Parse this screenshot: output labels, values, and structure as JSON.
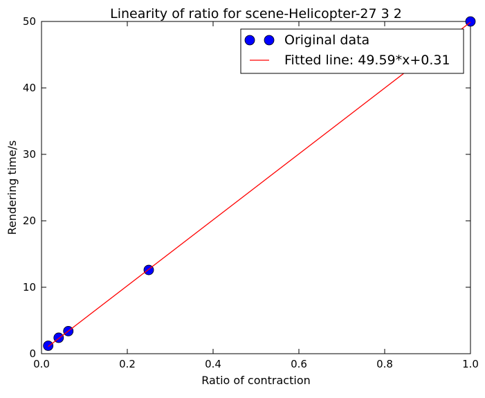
{
  "chart_data": {
    "type": "scatter",
    "title": "Linearity of ratio for scene-Helicopter-27 3 2",
    "xlabel": "Ratio of contraction",
    "ylabel": "Rendering time/s",
    "xlim": [
      0.0,
      1.0
    ],
    "ylim": [
      0,
      50
    ],
    "xticks": [
      0.0,
      0.2,
      0.4,
      0.6,
      0.8,
      1.0
    ],
    "xtick_labels": [
      "0.0",
      "0.2",
      "0.4",
      "0.6",
      "0.8",
      "1.0"
    ],
    "yticks": [
      0,
      10,
      20,
      30,
      40,
      50
    ],
    "ytick_labels": [
      "0",
      "10",
      "20",
      "30",
      "40",
      "50"
    ],
    "grid": false,
    "legend_position": "top-right",
    "series": [
      {
        "name": "Original data",
        "kind": "markers",
        "color": "#0000ff",
        "x": [
          0.0156,
          0.04,
          0.0625,
          0.25,
          1.0
        ],
        "y": [
          1.2,
          2.4,
          3.4,
          12.6,
          50.0
        ]
      },
      {
        "name": "Fitted line: 49.59*x+0.31",
        "kind": "line",
        "color": "#ff0000",
        "slope": 49.59,
        "intercept": 0.31,
        "x_range": [
          0.0156,
          1.0
        ]
      }
    ]
  }
}
